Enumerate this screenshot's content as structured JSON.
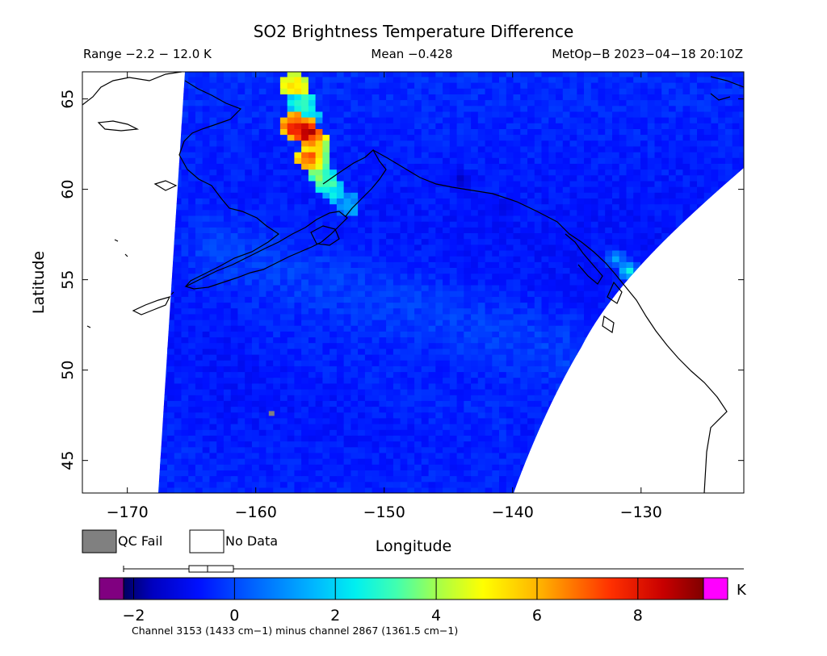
{
  "header": {
    "title": "SO2 Brightness Temperature Difference",
    "range": "Range −2.2 − 12.0 K",
    "mean": "Mean −0.428",
    "satellite_time": "MetOp−B 2023−04−18 20:10Z"
  },
  "axes": {
    "xlabel": "Longitude",
    "ylabel": "Latitude",
    "x_ticks": [
      {
        "value": -170,
        "label": "−170"
      },
      {
        "value": -160,
        "label": "−160"
      },
      {
        "value": -150,
        "label": "−150"
      },
      {
        "value": -140,
        "label": "−140"
      },
      {
        "value": -130,
        "label": "−130"
      }
    ],
    "y_ticks": [
      {
        "value": 45,
        "label": "45"
      },
      {
        "value": 50,
        "label": "50"
      },
      {
        "value": 55,
        "label": "55"
      },
      {
        "value": 60,
        "label": "60"
      },
      {
        "value": 65,
        "label": "65"
      }
    ],
    "xlim": [
      -173.5,
      -122
    ],
    "ylim": [
      43.2,
      66.5
    ]
  },
  "legend": {
    "qc_fail_label": "QC Fail",
    "no_data_label": "No Data",
    "qc_fail_color": "#808080",
    "no_data_color": "#ffffff"
  },
  "colorbar": {
    "unit": "K",
    "ticks": [
      {
        "value": -2,
        "label": "−2"
      },
      {
        "value": 0,
        "label": "0"
      },
      {
        "value": 2,
        "label": "2"
      },
      {
        "value": 4,
        "label": "4"
      },
      {
        "value": 6,
        "label": "6"
      },
      {
        "value": 8,
        "label": "8"
      }
    ],
    "range": [
      -2.2,
      9.3
    ],
    "under_color": "#800080",
    "over_color": "#ff00ff",
    "caption": "Channel 3153 (1433 cm−1) minus channel 2867 (1361.5 cm−1)"
  },
  "chart_data": {
    "type": "heatmap",
    "title": "SO2 Brightness Temperature Difference",
    "xlabel": "Longitude",
    "ylabel": "Latitude",
    "xlim": [
      -173.5,
      -122
    ],
    "ylim": [
      43.2,
      66.5
    ],
    "value_range": [
      -2.2,
      12.0
    ],
    "mean": -0.428,
    "unit": "K",
    "background_value": -0.5,
    "bands": [
      {
        "from": [
          -163,
          56.5
        ],
        "to": [
          -136,
          51.0
        ],
        "width_deg": 2.5,
        "value": 0.6
      },
      {
        "from": [
          -160,
          52.0
        ],
        "to": [
          -141,
          47.0
        ],
        "width_deg": 1.6,
        "value": 0.2
      },
      {
        "from": [
          -165,
          63.0
        ],
        "to": [
          -166,
          45.0
        ],
        "width_deg": 1.5,
        "value": 0.1
      }
    ],
    "plume": [
      {
        "lon": -157.0,
        "lat": 65.8,
        "value": 6.0
      },
      {
        "lon": -156.5,
        "lat": 64.8,
        "value": 3.0
      },
      {
        "lon": -155.8,
        "lat": 64.0,
        "value": 2.0
      },
      {
        "lon": -157.0,
        "lat": 63.5,
        "value": 8.5
      },
      {
        "lon": -156.0,
        "lat": 63.2,
        "value": 9.5
      },
      {
        "lon": -155.5,
        "lat": 62.8,
        "value": 7.0
      },
      {
        "lon": -155.0,
        "lat": 62.3,
        "value": 5.0
      },
      {
        "lon": -155.8,
        "lat": 61.8,
        "value": 7.5
      },
      {
        "lon": -155.2,
        "lat": 61.2,
        "value": 4.5
      },
      {
        "lon": -154.6,
        "lat": 60.6,
        "value": 3.5
      },
      {
        "lon": -154.0,
        "lat": 60.0,
        "value": 2.5
      },
      {
        "lon": -153.0,
        "lat": 59.2,
        "value": 1.2
      }
    ],
    "hotspots": [
      {
        "lon": -131.0,
        "lat": 55.5,
        "value": 3.0
      },
      {
        "lon": -132.0,
        "lat": 56.2,
        "value": 1.5
      },
      {
        "lon": -144.0,
        "lat": 60.6,
        "value": -1.6
      },
      {
        "lon": -140.5,
        "lat": 59.0,
        "value": -1.2
      }
    ],
    "qc_fail_points": [
      {
        "lon": -158.8,
        "lat": 47.6
      }
    ]
  }
}
